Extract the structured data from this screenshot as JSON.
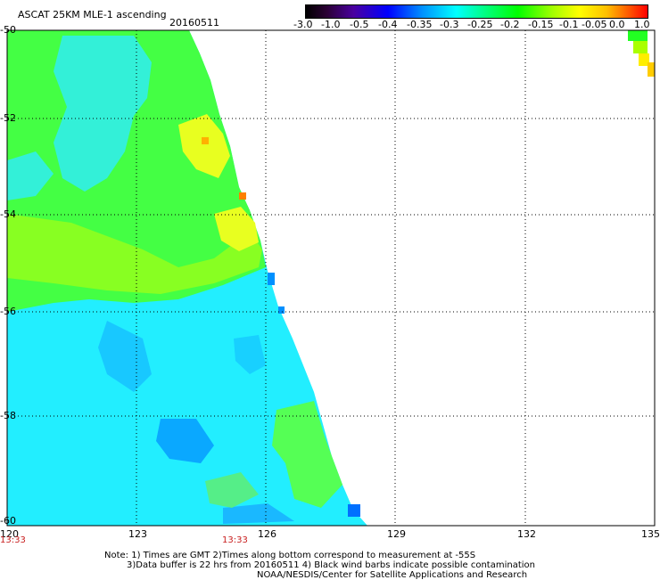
{
  "header": {
    "title": "ASCAT 25KM MLE-1 ascending",
    "date": "20160511"
  },
  "colorbar": {
    "labels": [
      "-3.0",
      "-1.0",
      "-0.5",
      "-0.4",
      "-0.35",
      "-0.3",
      "-0.25",
      "-0.2",
      "-0.15",
      "-0.1",
      "-0.05",
      "0.0",
      "1.0"
    ]
  },
  "map": {
    "lat_labels": [
      "-50",
      "-52",
      "-54",
      "-56",
      "-58",
      "-60"
    ],
    "lon_labels": [
      "120",
      "123",
      "126",
      "129",
      "132",
      "135"
    ],
    "time_labels": [
      "13:33",
      "13:33"
    ],
    "colors": {
      "cyan": "#00ffff",
      "green": "#33ff33",
      "lime": "#88ff00",
      "yellow": "#ffff00",
      "blue": "#0090ff",
      "orange": "#ff7f00",
      "time_red": "#c81e1e"
    }
  },
  "notes": {
    "line1": "Note: 1) Times are GMT 2)Times along bottom correspond to measurement at -55S",
    "line2": "3)Data buffer is 22 hrs from 20160511 4) Black wind barbs indicate possible contamination",
    "line3": "NOAA/NESDIS/Center for Satellite Applications and Research"
  }
}
